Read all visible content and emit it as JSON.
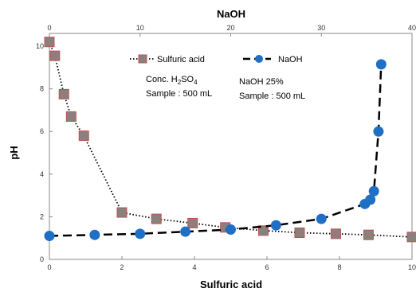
{
  "chart_data": {
    "type": "scatter",
    "x_bottom": {
      "label": "Sulfuric acid",
      "range": [
        0,
        10
      ],
      "ticks": [
        0,
        2,
        4,
        6,
        8,
        10
      ]
    },
    "x_top": {
      "label": "NaOH",
      "range": [
        0,
        40
      ],
      "ticks": [
        0,
        10,
        20,
        30,
        40
      ]
    },
    "y": {
      "label": "pH",
      "range": [
        0,
        10.6
      ],
      "ticks": [
        0,
        2,
        4,
        6,
        8,
        10
      ]
    },
    "grid": false,
    "legend_position": "top",
    "series": [
      {
        "name": "Sulfuric acid",
        "x_axis": "bottom",
        "marker": "square",
        "line": "dotted",
        "color": "#8c7f7f",
        "edge_color": "#c0504d",
        "points": [
          {
            "x": 0,
            "y": 10.2
          },
          {
            "x": 0.15,
            "y": 9.55
          },
          {
            "x": 0.4,
            "y": 7.75
          },
          {
            "x": 0.6,
            "y": 6.7
          },
          {
            "x": 0.95,
            "y": 5.8
          },
          {
            "x": 2.0,
            "y": 2.2
          },
          {
            "x": 2.95,
            "y": 1.9
          },
          {
            "x": 3.95,
            "y": 1.7
          },
          {
            "x": 4.85,
            "y": 1.5
          },
          {
            "x": 5.9,
            "y": 1.35
          },
          {
            "x": 6.9,
            "y": 1.25
          },
          {
            "x": 7.9,
            "y": 1.2
          },
          {
            "x": 8.8,
            "y": 1.15
          },
          {
            "x": 10.0,
            "y": 1.05
          }
        ]
      },
      {
        "name": "NaOH",
        "x_axis": "top",
        "marker": "circle",
        "line": "dashed",
        "color": "#1f6fc5",
        "points": [
          {
            "x": 0,
            "y": 1.1
          },
          {
            "x": 5,
            "y": 1.15
          },
          {
            "x": 10,
            "y": 1.2
          },
          {
            "x": 15,
            "y": 1.3
          },
          {
            "x": 20,
            "y": 1.4
          },
          {
            "x": 25,
            "y": 1.6
          },
          {
            "x": 30,
            "y": 1.9
          },
          {
            "x": 34.8,
            "y": 2.6
          },
          {
            "x": 35.4,
            "y": 2.8
          },
          {
            "x": 35.8,
            "y": 3.2
          },
          {
            "x": 36.3,
            "y": 6.0
          },
          {
            "x": 36.6,
            "y": 9.15
          }
        ]
      }
    ],
    "annotations": [
      {
        "lines": [
          {
            "main": "Conc. H",
            "sub": "2",
            "mid": "SO",
            "sub2": "4"
          },
          {
            "text": "Sample : 500 mL"
          }
        ]
      },
      {
        "lines": [
          {
            "text": "NaOH 25%"
          },
          {
            "text": "Sample : 500 mL"
          }
        ]
      }
    ]
  }
}
